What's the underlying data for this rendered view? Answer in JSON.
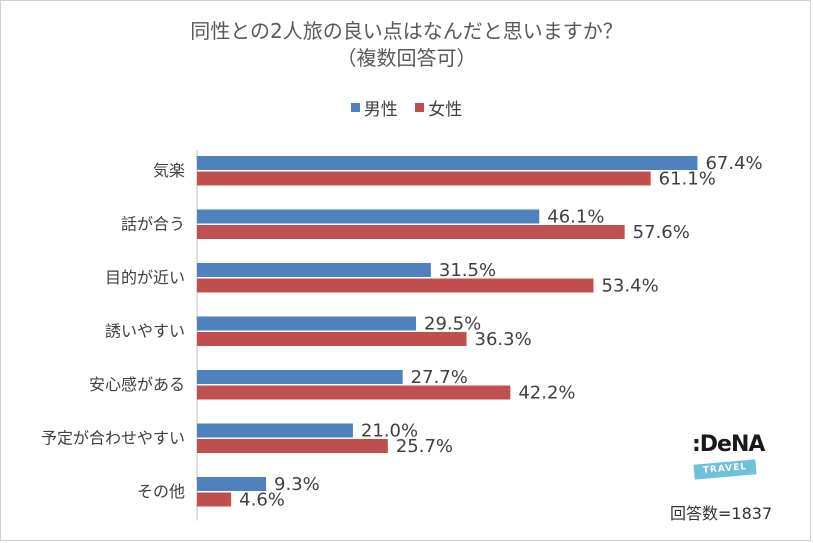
{
  "chart_data": {
    "type": "bar",
    "orientation": "horizontal",
    "title": "同性との2人旅の良い点はなんだと思いますか？",
    "subtitle": "（複数回答可）",
    "categories": [
      "気楽",
      "話が合う",
      "目的が近い",
      "誘いやすい",
      "安心感がある",
      "予定が合わせやすい",
      "その他"
    ],
    "series": [
      {
        "name": "男性",
        "color": "#4f81bd",
        "values": [
          67.4,
          46.1,
          31.5,
          29.5,
          27.7,
          21.0,
          9.3
        ],
        "labels": [
          "67.4%",
          "46.1%",
          "31.5%",
          "29.5%",
          "27.7%",
          "21.0%",
          "9.3%"
        ]
      },
      {
        "name": "女性",
        "color": "#c0504d",
        "values": [
          61.1,
          57.6,
          53.4,
          36.3,
          42.2,
          25.7,
          4.6
        ],
        "labels": [
          "61.1%",
          "57.6%",
          "53.4%",
          "36.3%",
          "42.2%",
          "25.7%",
          "4.6%"
        ]
      }
    ],
    "xlim": [
      0,
      80
    ],
    "grid": false,
    "legend_position": "top"
  },
  "logo": {
    "brand": ":DeNA",
    "sub": "TRAVEL"
  },
  "respondents": "回答数=1837"
}
